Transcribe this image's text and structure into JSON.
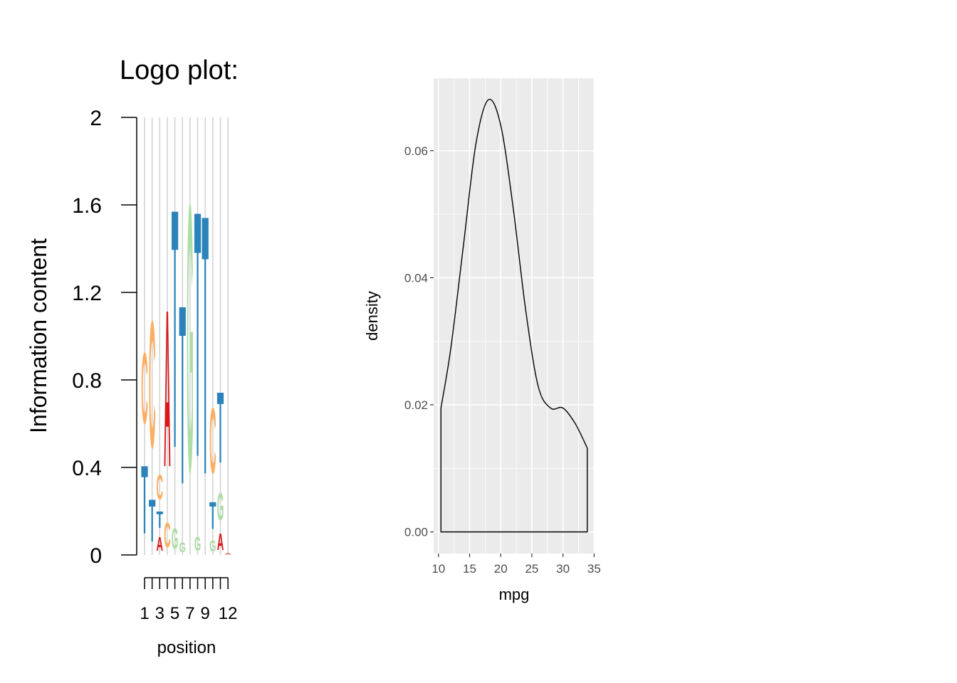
{
  "chart_data": [
    {
      "type": "logo",
      "title": "Logo plot:",
      "ylabel": "Information content",
      "xlabel": "position",
      "categories": [
        "1",
        null,
        "3",
        null,
        "5",
        null,
        "7",
        null,
        "9",
        null,
        null,
        "12"
      ],
      "series": [
        {
          "name": "A",
          "color": "#d7191c",
          "values": [
            0,
            0,
            0.1,
            1.15,
            0,
            0,
            0,
            0,
            0,
            0,
            0.12,
            0.01
          ]
        },
        {
          "name": "C",
          "color": "#fdae61",
          "values": [
            0.52,
            0.93,
            0.18,
            0.18,
            0,
            0,
            0,
            0,
            0,
            0.48,
            0,
            0
          ]
        },
        {
          "name": "G",
          "color": "#abdda4",
          "values": [
            0,
            0,
            0,
            0,
            0.15,
            0.07,
            1.96,
            0.1,
            0,
            0.08,
            0.2,
            0
          ]
        },
        {
          "name": "T",
          "color": "#2b83ba",
          "values": [
            0.5,
            0.31,
            0.12,
            0,
            1.75,
            1.31,
            0,
            1.8,
            1.9,
            0.2,
            0.52,
            0
          ]
        }
      ],
      "ylim": [
        0,
        2
      ],
      "yticks": [
        0,
        0.4,
        0.8,
        1.2,
        1.6,
        2
      ],
      "grid": true
    },
    {
      "type": "density",
      "xlabel": "mpg",
      "ylabel": "density",
      "x": [
        10.4,
        12,
        14,
        16,
        18,
        20,
        22,
        24,
        26,
        28,
        30,
        32,
        33.9
      ],
      "series": [
        {
          "color": "#000000",
          "values": [
            0.0195,
            0.029,
            0.045,
            0.061,
            0.068,
            0.064,
            0.051,
            0.035,
            0.023,
            0.0195,
            0.0195,
            0.017,
            0.0132
          ]
        }
      ],
      "xlim": [
        9.225,
        35.075
      ],
      "xticks": [
        10,
        15,
        20,
        25,
        30,
        35
      ],
      "ylim": [
        -0.0034,
        0.0714
      ],
      "yticks": [
        {
          "value": 0,
          "label": "0.00"
        },
        {
          "value": 0.02,
          "label": "0.02"
        },
        {
          "value": 0.04,
          "label": "0.04"
        },
        {
          "value": 0.06,
          "label": "0.06"
        }
      ],
      "grid": true,
      "background": "#ebebeb"
    }
  ]
}
